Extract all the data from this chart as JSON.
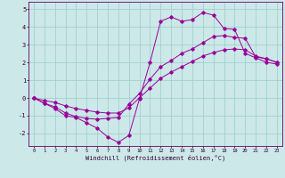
{
  "xlabel": "Windchill (Refroidissement éolien,°C)",
  "background_color": "#cce8e8",
  "grid_color": "#99cccc",
  "line_color": "#990099",
  "xlim": [
    -0.5,
    23.5
  ],
  "ylim": [
    -2.7,
    5.4
  ],
  "xticks": [
    0,
    1,
    2,
    3,
    4,
    5,
    6,
    7,
    8,
    9,
    10,
    11,
    12,
    13,
    14,
    15,
    16,
    17,
    18,
    19,
    20,
    21,
    22,
    23
  ],
  "yticks": [
    -2,
    -1,
    0,
    1,
    2,
    3,
    4,
    5
  ],
  "series1_x": [
    0,
    1,
    2,
    3,
    4,
    5,
    6,
    7,
    8,
    9,
    10,
    11,
    12,
    13,
    14,
    15,
    16,
    17,
    18,
    19,
    20,
    21,
    22,
    23
  ],
  "series1_y": [
    0.0,
    -0.3,
    -0.6,
    -1.0,
    -1.1,
    -1.4,
    -1.7,
    -2.2,
    -2.5,
    -2.1,
    -0.05,
    2.0,
    4.3,
    4.55,
    4.3,
    4.4,
    4.8,
    4.65,
    3.9,
    3.85,
    2.5,
    2.25,
    2.0,
    1.9
  ],
  "series2_x": [
    0,
    1,
    2,
    3,
    4,
    5,
    6,
    7,
    8,
    9,
    10,
    11,
    12,
    13,
    14,
    15,
    16,
    17,
    18,
    19,
    20,
    21,
    22,
    23
  ],
  "series2_y": [
    0.0,
    -0.3,
    -0.5,
    -0.85,
    -1.05,
    -1.15,
    -1.2,
    -1.15,
    -1.1,
    -0.35,
    0.25,
    1.05,
    1.75,
    2.1,
    2.5,
    2.75,
    3.1,
    3.45,
    3.5,
    3.4,
    3.35,
    2.3,
    2.2,
    2.0
  ],
  "series3_x": [
    0,
    1,
    2,
    3,
    4,
    5,
    6,
    7,
    8,
    9,
    10,
    11,
    12,
    13,
    14,
    15,
    16,
    17,
    18,
    19,
    20,
    21,
    22,
    23
  ],
  "series3_y": [
    0.0,
    -0.15,
    -0.25,
    -0.45,
    -0.6,
    -0.7,
    -0.8,
    -0.85,
    -0.85,
    -0.55,
    0.0,
    0.55,
    1.1,
    1.45,
    1.75,
    2.05,
    2.35,
    2.55,
    2.7,
    2.75,
    2.7,
    2.35,
    2.2,
    2.0
  ]
}
